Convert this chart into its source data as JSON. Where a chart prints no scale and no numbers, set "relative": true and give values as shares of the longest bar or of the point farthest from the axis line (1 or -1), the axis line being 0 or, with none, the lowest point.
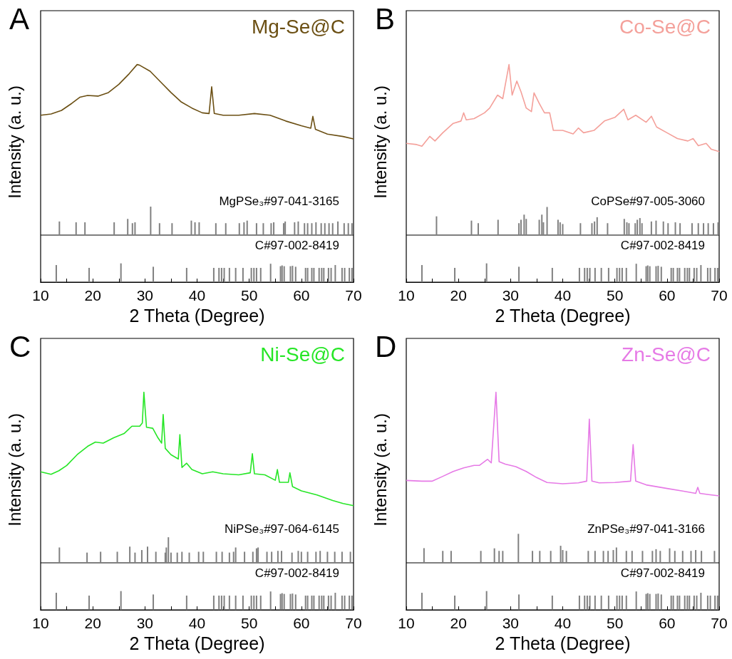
{
  "chart_data": [
    {
      "type": "line",
      "title": "A",
      "ylabel": "Intensity (a. u.)",
      "xlim": [
        10,
        70
      ],
      "tick_labels": false,
      "relative": true,
      "marker": "none",
      "series": [
        {
          "name": "Mg-Se@C",
          "color": "#6b4f13",
          "x": [
            10,
            12,
            14,
            16,
            17.5,
            19,
            21,
            23,
            25,
            27,
            28.5,
            29,
            31,
            33,
            35,
            37,
            39,
            41,
            42.3,
            42.8,
            43.3,
            45,
            48,
            51,
            54,
            57,
            60,
            61.8,
            62.2,
            62.7,
            65,
            68,
            70
          ],
          "values": [
            0.703,
            0.71,
            0.731,
            0.773,
            0.808,
            0.819,
            0.815,
            0.836,
            0.884,
            0.947,
            1,
            0.996,
            0.961,
            0.898,
            0.836,
            0.78,
            0.745,
            0.717,
            0.713,
            0.87,
            0.713,
            0.703,
            0.703,
            0.713,
            0.703,
            0.669,
            0.641,
            0.627,
            0.696,
            0.62,
            0.592,
            0.578,
            0.564
          ]
        },
        {
          "type": "bar",
          "name": "MgPSe₃#97-041-3165",
          "color": "#808080",
          "x": [
            13.6,
            16.8,
            18.5,
            24.1,
            26.7,
            27.6,
            28.1,
            31.1,
            32.8,
            35.2,
            38.9,
            39.6,
            40.4,
            43.6,
            45.5,
            48.1,
            49,
            49.6,
            51.4,
            52.7,
            54.2,
            54.7,
            56.6,
            56.9,
            58.7,
            59.4,
            60.6,
            61.2,
            62,
            62.8,
            63.8,
            64.5,
            65.3,
            66,
            67,
            68.2,
            69,
            69.7
          ],
          "values": [
            0.08,
            0.075,
            0.075,
            0.075,
            0.095,
            0.07,
            0.075,
            0.167,
            0.07,
            0.07,
            0.085,
            0.075,
            0.075,
            0.07,
            0.07,
            0.07,
            0.075,
            0.085,
            0.07,
            0.07,
            0.07,
            0.075,
            0.07,
            0.08,
            0.075,
            0.08,
            0.07,
            0.07,
            0.07,
            0.075,
            0.07,
            0.07,
            0.07,
            0.07,
            0.08,
            0.07,
            0.07,
            0.07
          ]
        }
      ]
    },
    {
      "type": "bar",
      "xlabel": "2 Theta (Degree)",
      "xlim": [
        10,
        70
      ],
      "xticks": [
        10,
        {
          "value": 15,
          "label": null
        },
        20,
        {
          "value": 25,
          "label": null
        },
        30,
        {
          "value": 35,
          "label": null
        },
        40,
        {
          "value": 45,
          "label": null
        },
        50,
        {
          "value": 55,
          "label": null
        },
        60,
        {
          "value": 65,
          "label": null
        },
        70
      ],
      "tick_labels": "x",
      "relative": true,
      "series": [
        {
          "name": "C#97-002-8419",
          "color": "#808080",
          "x": [
            13,
            19.3,
            25.4,
            31.6,
            38,
            43.2,
            44.2,
            44.7,
            45.2,
            46.2,
            47.4,
            48.8,
            50.4,
            50.9,
            51.4,
            52.2,
            54.1,
            56,
            56.3,
            56.7,
            57.9,
            58.3,
            58.9,
            60.8,
            61.2,
            62,
            62.4,
            63.4,
            63.9,
            64.3,
            65.2,
            65.7,
            66.5,
            67.8,
            68.3,
            69.2,
            69.7
          ],
          "values": [
            0.91,
            0.76,
            1,
            0.82,
            0.76,
            0.76,
            0.76,
            0.76,
            0.76,
            0.76,
            0.76,
            0.76,
            0.76,
            0.76,
            0.76,
            0.76,
            0.98,
            0.85,
            0.89,
            0.85,
            0.85,
            0.87,
            0.82,
            0.76,
            0.76,
            0.76,
            0.76,
            0.76,
            0.76,
            0.76,
            0.76,
            0.76,
            0.91,
            0.76,
            0.76,
            0.76,
            0.76
          ]
        }
      ]
    },
    {
      "type": "line",
      "title": "B",
      "ylabel": "Intensity (a. u.)",
      "xlim": [
        10,
        70
      ],
      "tick_labels": false,
      "relative": true,
      "marker": "none",
      "series": [
        {
          "name": "Co-Se@C",
          "color": "#f4a09a",
          "x": [
            10,
            12,
            13,
            14.5,
            15.5,
            17,
            19,
            20.5,
            21,
            21.5,
            23,
            25,
            26,
            27.5,
            28.5,
            29.7,
            30.3,
            31.2,
            32,
            33,
            34,
            34.5,
            35.5,
            36.5,
            37.5,
            38.2,
            40,
            42,
            43,
            44,
            46,
            48,
            50,
            51.7,
            52.5,
            54,
            56,
            57,
            58,
            60,
            62,
            64,
            65,
            66,
            67.5,
            68.5,
            70
          ],
          "values": [
            0.538,
            0.531,
            0.521,
            0.579,
            0.552,
            0.6,
            0.655,
            0.669,
            0.717,
            0.676,
            0.683,
            0.717,
            0.745,
            0.821,
            0.8,
            1,
            0.821,
            0.903,
            0.841,
            0.745,
            0.724,
            0.834,
            0.772,
            0.717,
            0.717,
            0.614,
            0.614,
            0.593,
            0.628,
            0.6,
            0.614,
            0.669,
            0.69,
            0.738,
            0.676,
            0.703,
            0.662,
            0.697,
            0.634,
            0.6,
            0.566,
            0.552,
            0.566,
            0.524,
            0.538,
            0.503,
            0.49
          ]
        },
        {
          "type": "bar",
          "name": "CoPSe#97-005-3060",
          "color": "#808080",
          "x": [
            15.8,
            22.5,
            23.8,
            27.6,
            31.6,
            32,
            32.6,
            33,
            35.5,
            36,
            36.3,
            37,
            39.1,
            39.5,
            40,
            43.4,
            45.6,
            46.1,
            46.6,
            48.6,
            51.8,
            52.3,
            52.7,
            53.9,
            54.3,
            54.8,
            55.2,
            57,
            57.9,
            59.3,
            60.2,
            61.6,
            62.5,
            64.8,
            66,
            67,
            67.9,
            68.9,
            69.8
          ],
          "values": [
            0.11,
            0.085,
            0.07,
            0.09,
            0.07,
            0.09,
            0.12,
            0.095,
            0.09,
            0.12,
            0.075,
            0.165,
            0.09,
            0.075,
            0.065,
            0.07,
            0.07,
            0.08,
            0.105,
            0.07,
            0.095,
            0.075,
            0.07,
            0.07,
            0.09,
            0.1,
            0.07,
            0.08,
            0.085,
            0.08,
            0.07,
            0.075,
            0.07,
            0.07,
            0.07,
            0.07,
            0.07,
            0.07,
            0.075
          ]
        }
      ]
    },
    {
      "type": "bar",
      "xlabel": "2 Theta (Degree)",
      "xlim": [
        10,
        70
      ],
      "xticks": [
        10,
        {
          "value": 15,
          "label": null
        },
        20,
        {
          "value": 25,
          "label": null
        },
        30,
        {
          "value": 35,
          "label": null
        },
        40,
        {
          "value": 45,
          "label": null
        },
        50,
        {
          "value": 55,
          "label": null
        },
        60,
        {
          "value": 65,
          "label": null
        },
        70
      ],
      "tick_labels": "x",
      "relative": true,
      "series": [
        {
          "name": "C#97-002-8419",
          "color": "#808080",
          "x": [
            13,
            19.3,
            25.4,
            31.6,
            38,
            43.2,
            44.2,
            44.7,
            45.2,
            46.2,
            47.4,
            48.8,
            50.4,
            50.9,
            51.4,
            52.2,
            54.1,
            56,
            56.3,
            56.7,
            57.9,
            58.3,
            58.9,
            60.8,
            61.2,
            62,
            62.4,
            63.4,
            63.9,
            64.3,
            65.2,
            65.7,
            66.5,
            67.8,
            68.3,
            69.2,
            69.7
          ],
          "values": [
            0.91,
            0.76,
            1,
            0.82,
            0.76,
            0.76,
            0.76,
            0.76,
            0.76,
            0.76,
            0.76,
            0.76,
            0.76,
            0.76,
            0.76,
            0.76,
            0.98,
            0.85,
            0.89,
            0.85,
            0.85,
            0.87,
            0.82,
            0.76,
            0.76,
            0.76,
            0.76,
            0.76,
            0.76,
            0.76,
            0.76,
            0.76,
            0.91,
            0.76,
            0.76,
            0.76,
            0.76
          ]
        }
      ]
    },
    {
      "type": "line",
      "title": "C",
      "ylabel": "Intensity (a. u.)",
      "xlim": [
        10,
        70
      ],
      "tick_labels": false,
      "relative": true,
      "marker": "none",
      "series": [
        {
          "name": "Ni-Se@C",
          "color": "#26e626",
          "x": [
            10,
            12,
            13.5,
            15,
            17,
            19,
            20.5,
            22,
            24,
            26,
            27.5,
            29,
            29.5,
            29.8,
            30.3,
            31.5,
            32.5,
            33.2,
            33.5,
            33.9,
            35,
            36.4,
            36.7,
            37.1,
            38,
            39,
            41,
            43,
            45,
            48,
            50.2,
            50.6,
            51,
            53,
            55,
            55.4,
            55.8,
            57.5,
            57.8,
            58.3,
            60,
            63,
            66,
            68,
            70
          ],
          "values": [
            0.534,
            0.519,
            0.54,
            0.571,
            0.634,
            0.683,
            0.708,
            0.702,
            0.733,
            0.758,
            0.801,
            0.801,
            0.82,
            1,
            0.795,
            0.789,
            0.733,
            0.702,
            0.87,
            0.671,
            0.634,
            0.609,
            0.752,
            0.559,
            0.584,
            0.547,
            0.522,
            0.534,
            0.522,
            0.516,
            0.528,
            0.64,
            0.522,
            0.516,
            0.484,
            0.547,
            0.472,
            0.472,
            0.528,
            0.447,
            0.422,
            0.398,
            0.366,
            0.348,
            0.335
          ]
        },
        {
          "type": "bar",
          "name": "NiPSe₃#97-064-6145",
          "color": "#808080",
          "x": [
            13.6,
            18.9,
            21.5,
            24.7,
            27.1,
            28.1,
            29.4,
            30.5,
            32.1,
            33.9,
            34.1,
            34.5,
            35,
            36.2,
            37.1,
            38.5,
            40.3,
            41.2,
            43.7,
            44.8,
            46.2,
            47,
            47.4,
            49.1,
            50.7,
            51.4,
            51.7,
            53.4,
            54.3,
            55.5,
            56.2,
            58.2,
            59.4,
            60,
            61.2,
            62.8,
            63.6,
            65,
            66.4,
            67.8,
            69.4
          ],
          "values": [
            0.09,
            0.06,
            0.065,
            0.065,
            0.095,
            0.06,
            0.075,
            0.095,
            0.065,
            0.06,
            0.09,
            0.15,
            0.06,
            0.06,
            0.065,
            0.06,
            0.065,
            0.065,
            0.065,
            0.065,
            0.06,
            0.065,
            0.09,
            0.065,
            0.065,
            0.085,
            0.09,
            0.065,
            0.065,
            0.07,
            0.07,
            0.06,
            0.07,
            0.065,
            0.065,
            0.065,
            0.07,
            0.065,
            0.065,
            0.065,
            0.065
          ]
        }
      ]
    },
    {
      "type": "bar",
      "xlabel": "2 Theta (Degree)",
      "xlim": [
        10,
        70
      ],
      "xticks": [
        10,
        {
          "value": 15,
          "label": null
        },
        20,
        {
          "value": 25,
          "label": null
        },
        30,
        {
          "value": 35,
          "label": null
        },
        40,
        {
          "value": 45,
          "label": null
        },
        50,
        {
          "value": 55,
          "label": null
        },
        60,
        {
          "value": 65,
          "label": null
        },
        70
      ],
      "tick_labels": "x",
      "relative": true,
      "series": [
        {
          "name": "C#97-002-8419",
          "color": "#808080",
          "x": [
            13,
            19.3,
            25.4,
            31.6,
            38,
            43.2,
            44.2,
            44.7,
            45.2,
            46.2,
            47.4,
            48.8,
            50.4,
            50.9,
            51.4,
            52.2,
            54.1,
            56,
            56.3,
            56.7,
            57.9,
            58.3,
            58.9,
            60.8,
            61.2,
            62,
            62.4,
            63.4,
            63.9,
            64.3,
            65.2,
            65.7,
            66.5,
            67.8,
            68.3,
            69.2,
            69.7
          ],
          "values": [
            0.91,
            0.76,
            1,
            0.82,
            0.76,
            0.76,
            0.76,
            0.76,
            0.76,
            0.76,
            0.76,
            0.76,
            0.76,
            0.76,
            0.76,
            0.76,
            0.98,
            0.85,
            0.89,
            0.85,
            0.85,
            0.87,
            0.82,
            0.76,
            0.76,
            0.76,
            0.76,
            0.76,
            0.76,
            0.76,
            0.76,
            0.76,
            0.91,
            0.76,
            0.76,
            0.76,
            0.76
          ]
        }
      ]
    },
    {
      "type": "line",
      "title": "D",
      "ylabel": "Intensity (a. u.)",
      "xlim": [
        10,
        70
      ],
      "tick_labels": false,
      "relative": true,
      "marker": "none",
      "series": [
        {
          "name": "Zn-Se@C",
          "color": "#e67ae6",
          "x": [
            10,
            13,
            15,
            17,
            19,
            21,
            23,
            24,
            25.6,
            26.3,
            27.2,
            27.8,
            29,
            31,
            33,
            35,
            37,
            40,
            43,
            44.6,
            45.1,
            45.6,
            47,
            50,
            53,
            53.5,
            54,
            56,
            60,
            63,
            65.5,
            65.9,
            66.3,
            68,
            70
          ],
          "values": [
            0.483,
            0.479,
            0.479,
            0.507,
            0.536,
            0.557,
            0.571,
            0.571,
            0.607,
            0.586,
            1,
            0.593,
            0.579,
            0.564,
            0.536,
            0.5,
            0.471,
            0.464,
            0.469,
            0.479,
            0.843,
            0.479,
            0.469,
            0.471,
            0.479,
            0.693,
            0.479,
            0.457,
            0.436,
            0.421,
            0.407,
            0.443,
            0.407,
            0.4,
            0.393
          ]
        },
        {
          "type": "bar",
          "name": "ZnPSe₃#97-041-3166",
          "color": "#808080",
          "x": [
            13.4,
            17,
            18.6,
            24.3,
            26.9,
            27.8,
            28.5,
            31.5,
            34.2,
            35.6,
            37.7,
            39.6,
            40,
            40.7,
            44.9,
            46.2,
            47.8,
            48.7,
            49.7,
            50.3,
            52.2,
            53.3,
            55.3,
            57.2,
            57.9,
            58.7,
            60.5,
            61.5,
            63,
            64.6,
            65.5,
            66.6,
            69.1
          ],
          "values": [
            0.086,
            0.07,
            0.07,
            0.07,
            0.085,
            0.07,
            0.07,
            0.17,
            0.07,
            0.07,
            0.07,
            0.1,
            0.075,
            0.07,
            0.07,
            0.07,
            0.07,
            0.07,
            0.075,
            0.09,
            0.07,
            0.07,
            0.07,
            0.07,
            0.08,
            0.07,
            0.085,
            0.07,
            0.07,
            0.07,
            0.075,
            0.07,
            0.07
          ]
        }
      ]
    },
    {
      "type": "bar",
      "xlabel": "2 Theta (Degree)",
      "xlim": [
        10,
        70
      ],
      "xticks": [
        10,
        {
          "value": 15,
          "label": null
        },
        20,
        {
          "value": 25,
          "label": null
        },
        30,
        {
          "value": 35,
          "label": null
        },
        40,
        {
          "value": 45,
          "label": null
        },
        50,
        {
          "value": 55,
          "label": null
        },
        60,
        {
          "value": 65,
          "label": null
        },
        70
      ],
      "tick_labels": "x",
      "relative": true,
      "series": [
        {
          "name": "C#97-002-8419",
          "color": "#808080",
          "x": [
            13,
            19.3,
            25.4,
            31.6,
            38,
            43.2,
            44.2,
            44.7,
            45.2,
            46.2,
            47.4,
            48.8,
            50.4,
            50.9,
            51.4,
            52.2,
            54.1,
            56,
            56.3,
            56.7,
            57.9,
            58.3,
            58.9,
            60.8,
            61.2,
            62,
            62.4,
            63.4,
            63.9,
            64.3,
            65.2,
            65.7,
            66.5,
            67.8,
            68.3,
            69.2,
            69.7
          ],
          "values": [
            0.91,
            0.76,
            1,
            0.82,
            0.76,
            0.76,
            0.76,
            0.76,
            0.76,
            0.76,
            0.76,
            0.76,
            0.76,
            0.76,
            0.76,
            0.76,
            0.98,
            0.85,
            0.89,
            0.85,
            0.85,
            0.87,
            0.82,
            0.76,
            0.76,
            0.76,
            0.76,
            0.76,
            0.76,
            0.76,
            0.76,
            0.76,
            0.91,
            0.76,
            0.76,
            0.76,
            0.76
          ]
        }
      ]
    }
  ]
}
